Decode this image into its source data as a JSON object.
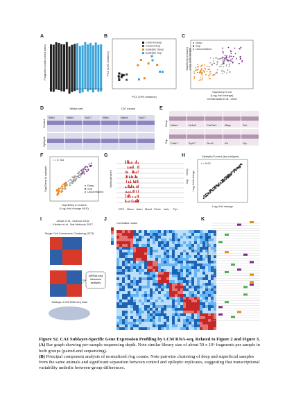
{
  "figure": {
    "A": {
      "label": "A",
      "ylabel": "Fragment counts (read pairs)"
    },
    "B": {
      "label": "B",
      "xlabel": "PC1 (75% variance)",
      "ylabel": "PC2 (14% variance)",
      "legend": [
        "Control Deep",
        "Control Sup",
        "Epileptic Deep",
        "Epileptic Sup"
      ]
    },
    "C": {
      "label": "C",
      "legend": [
        "Deep",
        "Sup",
        "Uncorrelated"
      ],
      "ylabel": "Sup/Deep (mouse)",
      "ylabel2": "(Log₂ fold change)",
      "xlabel": "Sup/Deep in rat",
      "xlabel2": "(Log₂ fold change)",
      "source": "Cembrowski et al., 2016"
    },
    "D": {
      "label": "D",
      "group1": "Wistar rats",
      "group2": "C57 mouse",
      "rows": [
        "Control",
        "Epileptic"
      ],
      "genes": [
        "Wfs1",
        "Ndst4",
        "Syt17",
        "Wfs1",
        "Ndst4",
        "Syt17"
      ]
    },
    "E": {
      "label": "E",
      "rows": [
        "Deep",
        "Sup"
      ],
      "genes_deep": [
        "Ndst4",
        "Nr4a2",
        "Col11a1",
        "Mfsp",
        "Sst"
      ],
      "genes_sup": [
        "Calb1",
        "Syt17",
        "Grm1",
        "Kit",
        "Vip"
      ]
    },
    "F": {
      "label": "F",
      "r": "r = 0.764",
      "ylabel": "Sup/Deep in epileptic",
      "xlabel": "Sup/Deep in control",
      "xlabel2": "(Log₂ fold change MLE)",
      "legend": [
        "Deep",
        "Sup",
        "Uncorrelated"
      ]
    },
    "G": {
      "label": "G",
      "ylabel": "Molecules/cell",
      "cells": [
        "OPC",
        "Micro",
        "Astro",
        "Mural",
        "Endo",
        "Inter",
        "Pyr"
      ]
    },
    "H": {
      "label": "H",
      "title": "Epileptic/Control (by sublayer)",
      "r": "r = 0.92",
      "xlabel": "Log₂ fold change",
      "ylabel": "Log₂ fold change",
      "legend": [
        "Deep",
        "Sup"
      ]
    },
    "I": {
      "label": "I",
      "ref1": "Zeisel et al., Science 2015",
      "ref2": "Kiselev et al., Nat Methods 2017",
      "method": "Single Cell Consensus Clustering (SC3)",
      "box": "scRNA-seq informed analysis",
      "data": "Sublayer LCM RNA-seq data"
    },
    "J": {
      "label": "J",
      "legend": "Correlation value"
    },
    "K": {
      "label": "K",
      "ylabel": "Log₂(molecules/cell)"
    }
  },
  "caption": {
    "title": "Figure S2. CA1 Sublayer-Specific Gene Expression Profiling by LCM RNA-seq, Related to Figure 2 and Figure 3.",
    "items": [
      {
        "tag": "(A)",
        "text": " Bar graph showing per-sample sequencing depth. Note similar library size of about 50 x 10⁶ fragments per sample in both groups (paired-end sequencing)."
      },
      {
        "tag": "(B)",
        "text": " Principal component analysis of normalized rlog counts. Note pairwise clustering of deep and superficial samples from the same animals and significant separation between control and epileptic replicates, suggesting that transcriptional variability underlie between-group differences."
      }
    ]
  }
}
